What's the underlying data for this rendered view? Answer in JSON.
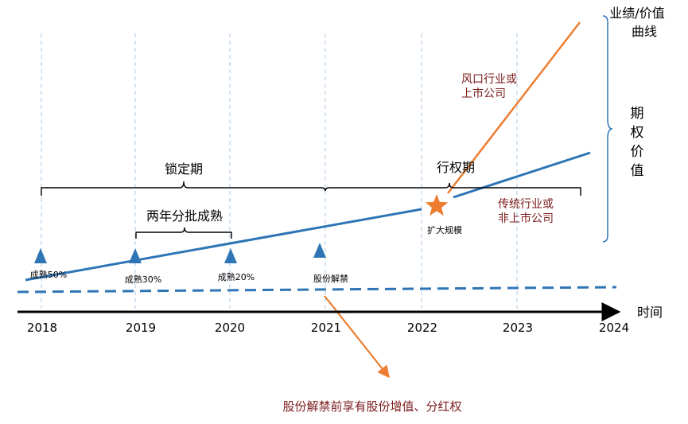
{
  "axis": {
    "years": [
      "2018",
      "2019",
      "2020",
      "2021",
      "2022",
      "2023",
      "2024"
    ],
    "time_label": "时间"
  },
  "right_axis": {
    "top_label_line1": "业绩/价值",
    "top_label_line2": "曲线",
    "side_label": [
      "期",
      "权",
      "价",
      "值"
    ]
  },
  "periods": {
    "lock_label": "锁定期",
    "exercise_label": "行权期",
    "vesting_label": "两年分批成熟"
  },
  "milestones": [
    {
      "label": "成熟50%"
    },
    {
      "label": "成熟30%"
    },
    {
      "label": "成熟20%"
    },
    {
      "label": "股份解禁"
    }
  ],
  "star_label": "扩大规模",
  "curves": {
    "hot_industry_line1": "风口行业或",
    "hot_industry_line2": "上市公司",
    "traditional_line1": "传统行业或",
    "traditional_line2": "非上市公司"
  },
  "footnote": "股份解禁前享有股份增值、分红权",
  "colors": {
    "blue": "#2e75b6",
    "orange": "#ed7d31",
    "dark_red": "#7b1b1b",
    "grid": "#a9c8e6",
    "axis": "#000000"
  }
}
